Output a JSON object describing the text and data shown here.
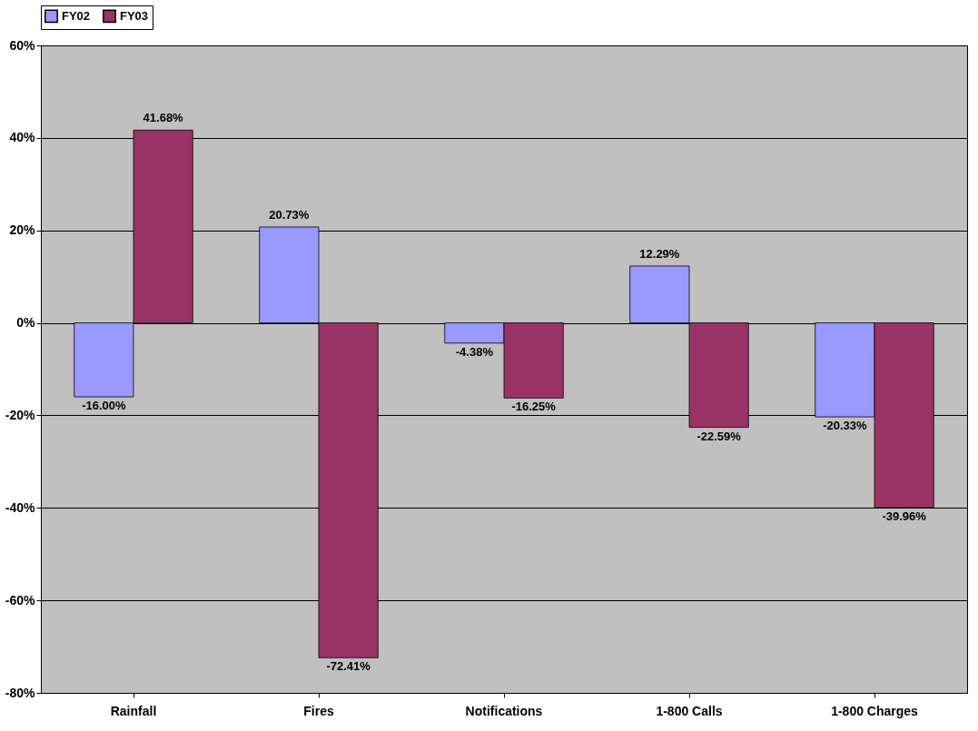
{
  "chart_data": {
    "type": "bar",
    "categories": [
      "Rainfall",
      "Fires",
      "Notifications",
      "1-800 Calls",
      "1-800 Charges"
    ],
    "series": [
      {
        "name": "FY02",
        "color": "#9999ff",
        "values": [
          -16.0,
          20.73,
          -4.38,
          12.29,
          -20.33
        ],
        "value_labels": [
          "-16.00%",
          "20.73%",
          "-4.38%",
          "12.29%",
          "-20.33%"
        ]
      },
      {
        "name": "FY03",
        "color": "#993366",
        "values": [
          41.68,
          -72.41,
          -16.25,
          -22.59,
          -39.96
        ],
        "value_labels": [
          "41.68%",
          "-72.41%",
          "-16.25%",
          "-22.59%",
          "-39.96%"
        ]
      }
    ],
    "ylim": [
      -80,
      60
    ],
    "yticks": [
      {
        "value": -80,
        "label": "-80%"
      },
      {
        "value": -60,
        "label": "-60%"
      },
      {
        "value": -40,
        "label": "-40%"
      },
      {
        "value": -20,
        "label": "-20%"
      },
      {
        "value": 0,
        "label": "0%"
      },
      {
        "value": 20,
        "label": "20%"
      },
      {
        "value": 40,
        "label": "40%"
      },
      {
        "value": 60,
        "label": "60%"
      }
    ],
    "grid": "y",
    "legend": "top"
  }
}
